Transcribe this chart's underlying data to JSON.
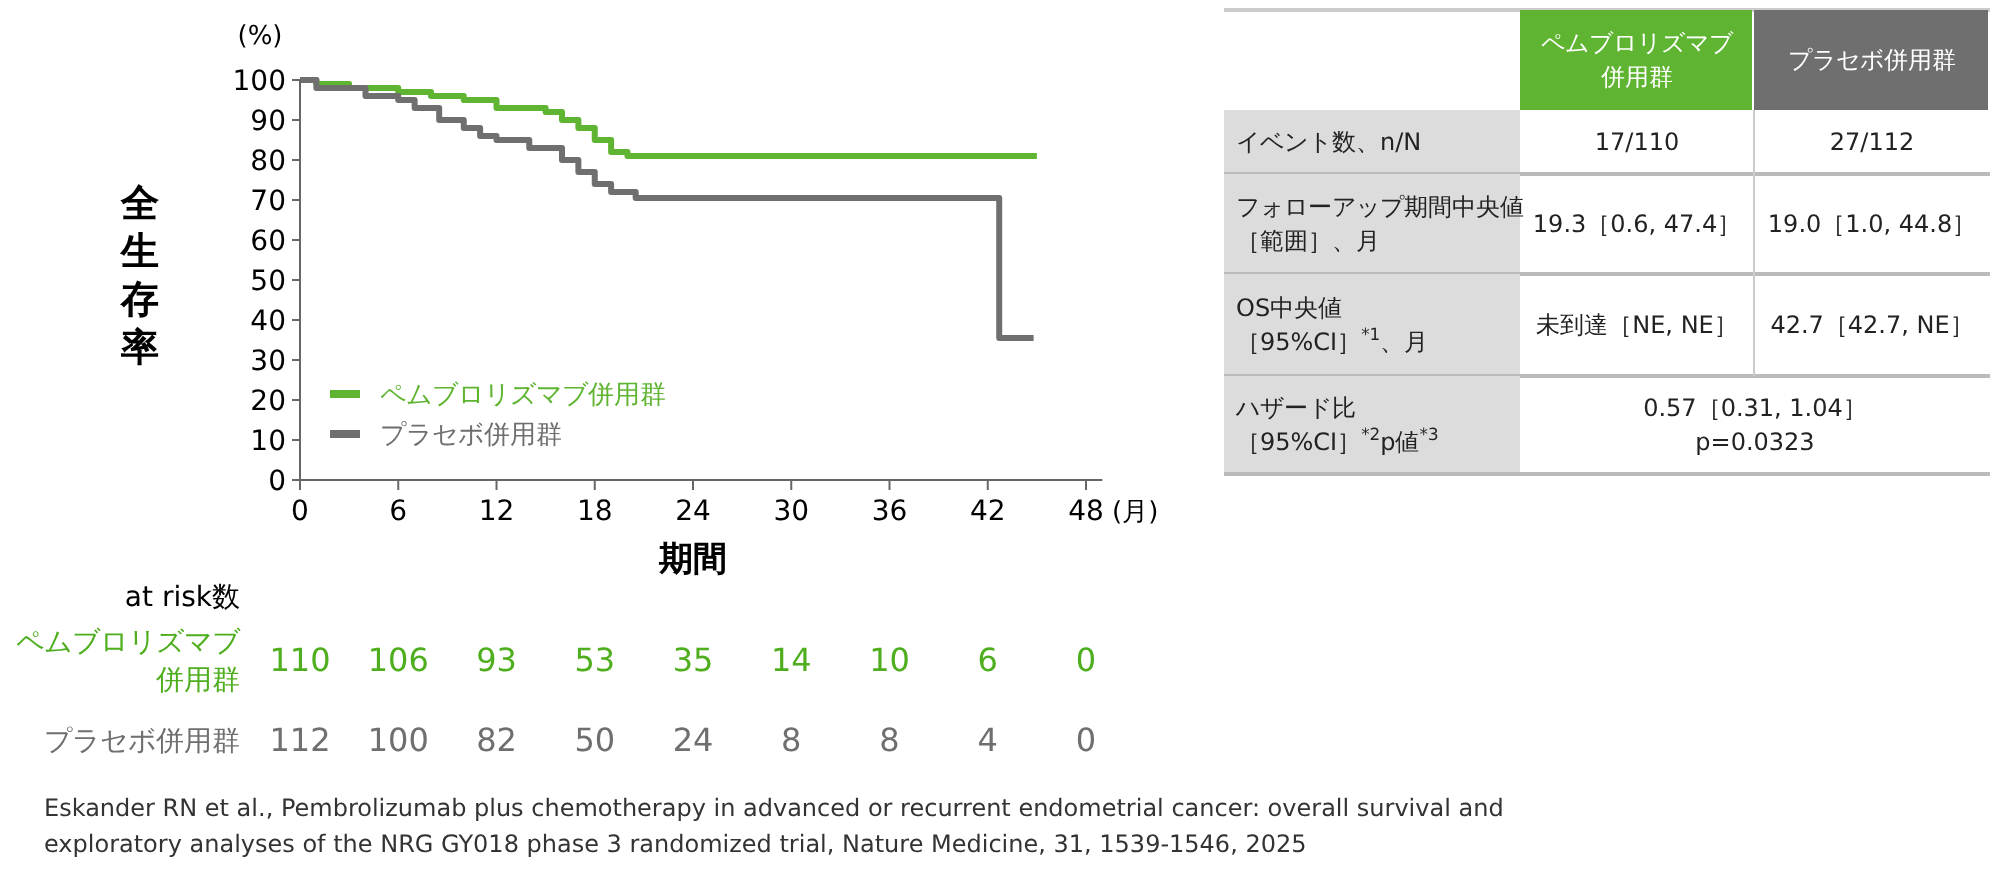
{
  "chart_data": [
    {
      "type": "step",
      "ylabel": "全生存率",
      "xlabel": "期間",
      "xlim": [
        0,
        49
      ],
      "xticks": [
        0,
        6,
        12,
        18,
        24,
        30,
        36,
        42,
        48
      ],
      "ylim": [
        0,
        100
      ],
      "yticks": [
        0,
        10,
        20,
        30,
        40,
        50,
        60,
        70,
        80,
        90,
        100
      ],
      "legend": "bottom left",
      "annotations": [
        "(%)",
        "(月)",
        "Eskander RN et al., Pembrolizumab plus chemotherapy in advanced or recurrent endometrial cancer: overall survival and exploratory analyses of the NRG GY018 phase 3 randomized trial, Nature Medicine, 31, 1539-1546, 2025"
      ],
      "series": [
        {
          "name": "ペムブロリズマブ併用群",
          "color": "#5fb432",
          "x": [
            0,
            1,
            3,
            6,
            8,
            10,
            12,
            15,
            16,
            17,
            18,
            19,
            20,
            45
          ],
          "values": [
            100,
            99,
            98,
            97,
            96,
            95,
            93,
            92,
            90,
            88,
            85,
            82,
            81,
            81
          ]
        },
        {
          "name": "プラセボ併用群",
          "color": "#6f6f6f",
          "x": [
            0,
            1,
            4,
            6,
            7,
            8.5,
            10,
            11,
            12,
            14,
            16,
            17,
            18,
            19,
            20.5,
            42.7,
            44.8
          ],
          "values": [
            100,
            98,
            96,
            95,
            93,
            90,
            88,
            86,
            85,
            83,
            80,
            77,
            74,
            72,
            70.5,
            35.5,
            35.5
          ]
        }
      ]
    },
    {
      "type": "other",
      "title": "at risk数",
      "y_categories": [
        "ペムブロリズマブ併用群",
        "プラセボ併用群"
      ],
      "colors": [
        "#4fae1e",
        "#6f6f6f"
      ],
      "cell_labels": [
        [
          "110",
          "106",
          "93",
          "53",
          "35",
          "14",
          "10",
          "6",
          "0"
        ],
        [
          "112",
          "100",
          "82",
          "50",
          "24",
          "8",
          "8",
          "4",
          "0"
        ]
      ]
    },
    {
      "type": "other",
      "categories": [
        "ペムブロリズマブ併用群",
        "プラセボ併用群"
      ],
      "colors": [
        "#5fb432",
        "#6f6f6f"
      ],
      "y_categories": [
        "イベント数、n/N",
        "フォローアップ期間中央値［範囲］、月",
        "OS中央値［95%CI］$^{*1}$、月",
        "ハザード比［95%CI］$^{*2}$p値$^{*3}$"
      ],
      "cell_labels": [
        [
          "17/110",
          "27/112"
        ],
        [
          "19.3［0.6, 47.4］",
          "19.0［1.0, 44.8］"
        ],
        [
          "未到達［NE, NE］",
          "42.7［42.7, NE］"
        ],
        [
          "0.57［0.31, 1.04］ p=0.0323",
          null
        ]
      ]
    }
  ]
}
